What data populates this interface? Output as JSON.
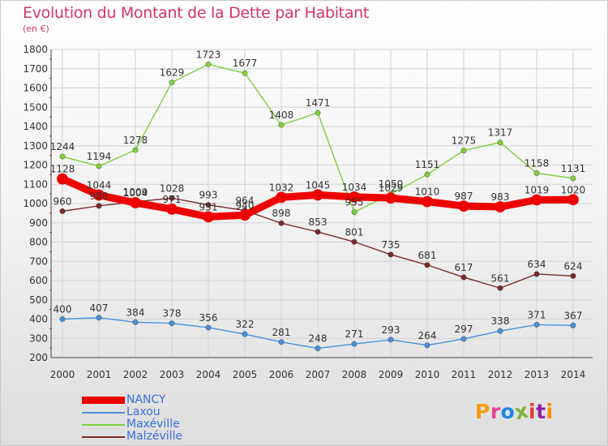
{
  "chart_data": {
    "type": "line",
    "title": "Evolution du Montant de la Dette par Habitant",
    "subtitle": "(en €)",
    "xlabel": "",
    "ylabel": "",
    "ylim": [
      200,
      1800
    ],
    "yticks": [
      200,
      300,
      400,
      500,
      600,
      700,
      800,
      900,
      1000,
      1100,
      1200,
      1300,
      1400,
      1500,
      1600,
      1700,
      1800
    ],
    "grid": true,
    "legend_position": "bottom-left",
    "categories": [
      "2000",
      "2001",
      "2002",
      "2003",
      "2004",
      "2005",
      "2006",
      "2007",
      "2008",
      "2009",
      "2010",
      "2011",
      "2012",
      "2013",
      "2014"
    ],
    "series": [
      {
        "name": "NANCY",
        "color": "#ee0000",
        "values": [
          1128,
          1044,
          1004,
          971,
          931,
          940,
          1032,
          1045,
          1034,
          1029,
          1010,
          987,
          983,
          1019,
          1020
        ]
      },
      {
        "name": "Laxou",
        "color": "#4a90d9",
        "values": [
          400,
          407,
          384,
          378,
          356,
          322,
          281,
          248,
          271,
          293,
          264,
          297,
          338,
          371,
          367
        ]
      },
      {
        "name": "Maxéville",
        "color": "#7ed03c",
        "values": [
          1244,
          1194,
          1278,
          1629,
          1723,
          1677,
          1408,
          1471,
          955,
          1050,
          1151,
          1275,
          1317,
          1158,
          1131
        ]
      },
      {
        "name": "Malzéville",
        "color": "#7a2a2a",
        "values": [
          960,
          988,
          1009,
          1028,
          993,
          964,
          898,
          853,
          801,
          735,
          681,
          617,
          561,
          634,
          624
        ]
      }
    ]
  },
  "logo": {
    "text": "Proxiti",
    "colors": [
      "#f39c12",
      "#e84393",
      "#1e88e5",
      "#7cb342",
      "#e53935",
      "#8e24aa",
      "#fb8c00"
    ]
  }
}
